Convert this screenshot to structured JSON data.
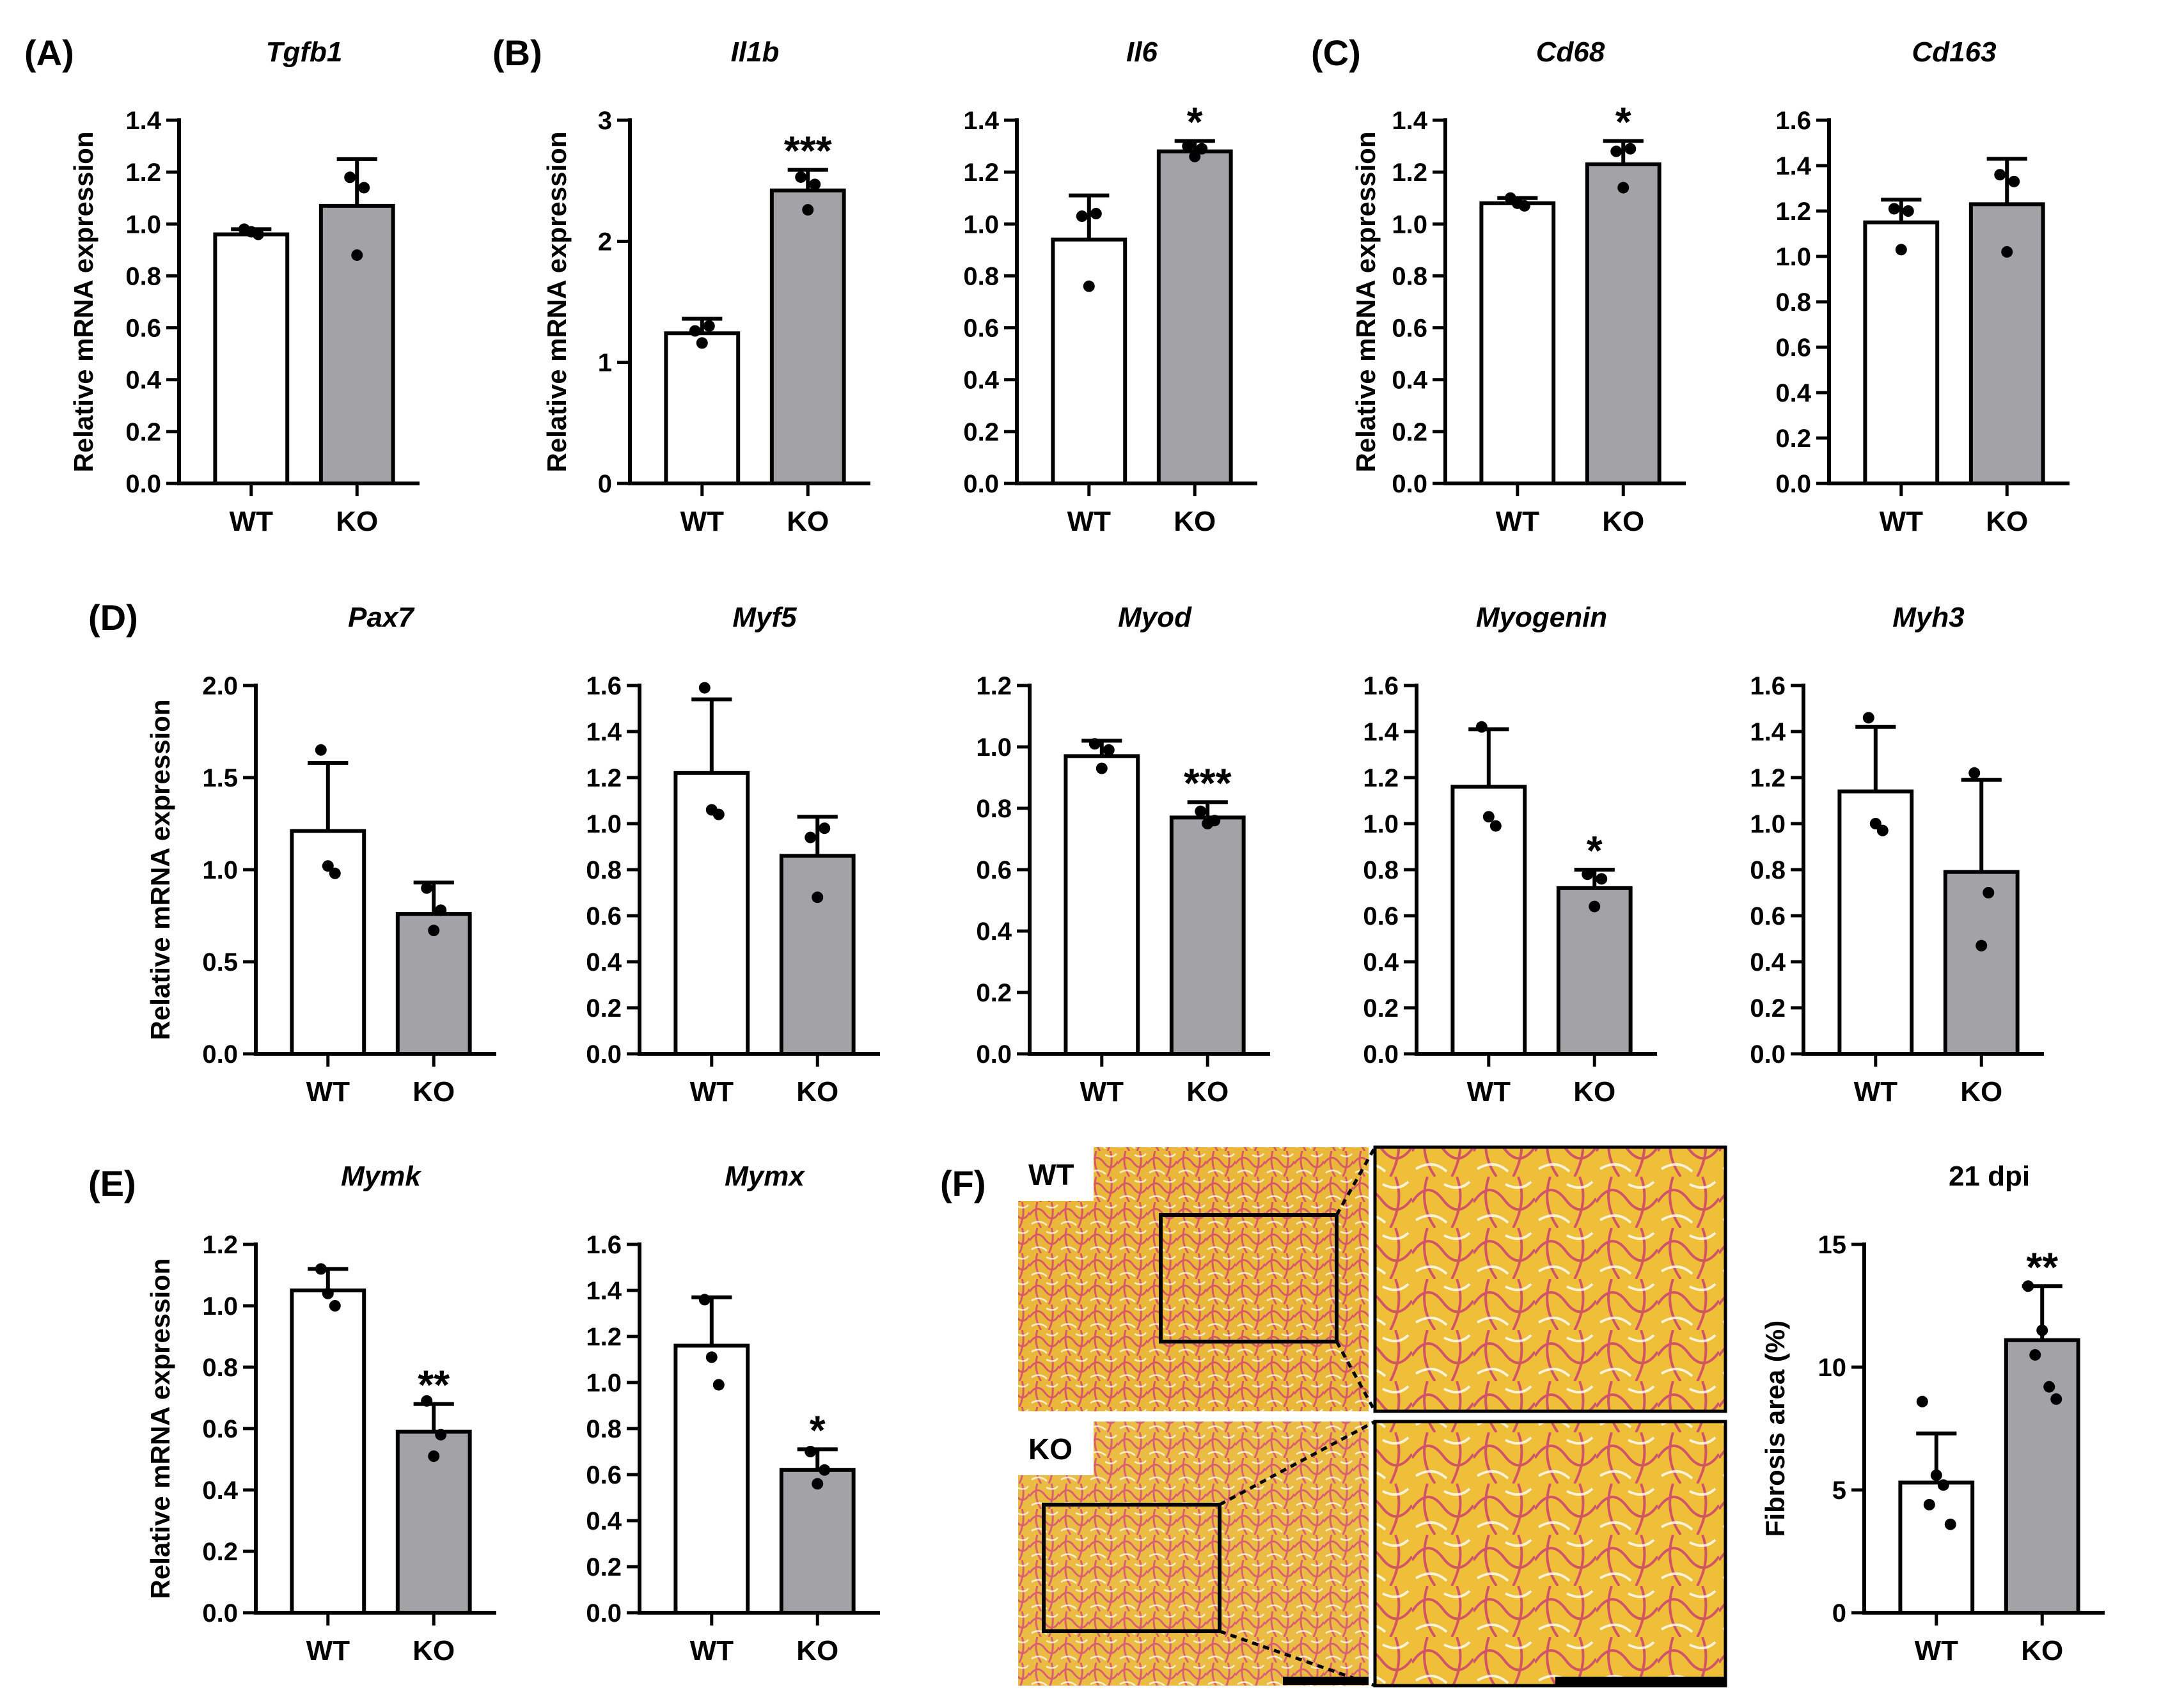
{
  "panel_labels": [
    "(A)",
    "(B)",
    "(C)",
    "(D)",
    "(E)",
    "(F)"
  ],
  "micrograph": {
    "wt_label": "WT",
    "ko_label": "KO"
  },
  "chart_data": [
    {
      "id": "tgfb1",
      "panel": "(A)",
      "type": "bar",
      "title": "Tgfb1",
      "title_italic": true,
      "ylabel": "Relative mRNA expression",
      "categories": [
        "WT",
        "KO"
      ],
      "values": [
        0.96,
        1.07
      ],
      "errors": [
        0.02,
        0.18
      ],
      "points": [
        [
          0.98,
          0.97,
          0.96
        ],
        [
          1.18,
          0.88,
          1.14
        ]
      ],
      "significance": [
        "",
        ""
      ],
      "ylim": [
        0,
        1.4
      ],
      "yticks": [
        "0.0",
        "0.2",
        "0.4",
        "0.6",
        "0.8",
        "1.0",
        "1.2",
        "1.4"
      ]
    },
    {
      "id": "il1b",
      "panel": "(B)",
      "type": "bar",
      "title": "Il1b",
      "title_italic": true,
      "ylabel": "Relative mRNA expression",
      "categories": [
        "WT",
        "KO"
      ],
      "values": [
        1.24,
        2.42
      ],
      "errors": [
        0.12,
        0.17
      ],
      "points": [
        [
          1.26,
          1.16,
          1.3
        ],
        [
          2.53,
          2.26,
          2.47
        ]
      ],
      "significance": [
        "",
        "***"
      ],
      "ylim": [
        0,
        3
      ],
      "yticks": [
        "0",
        "1",
        "2",
        "3"
      ]
    },
    {
      "id": "il6",
      "panel": "(B)",
      "type": "bar",
      "title": "Il6",
      "title_italic": true,
      "ylabel": "",
      "categories": [
        "WT",
        "KO"
      ],
      "values": [
        0.94,
        1.28
      ],
      "errors": [
        0.17,
        0.04
      ],
      "points": [
        [
          1.03,
          0.76,
          1.04
        ],
        [
          1.3,
          1.26,
          1.29
        ]
      ],
      "significance": [
        "",
        "*"
      ],
      "ylim": [
        0,
        1.4
      ],
      "yticks": [
        "0.0",
        "0.2",
        "0.4",
        "0.6",
        "0.8",
        "1.0",
        "1.2",
        "1.4"
      ]
    },
    {
      "id": "cd68",
      "panel": "(C)",
      "type": "bar",
      "title": "Cd68",
      "title_italic": true,
      "ylabel": "Relative mRNA expression",
      "categories": [
        "WT",
        "KO"
      ],
      "values": [
        1.08,
        1.23
      ],
      "errors": [
        0.02,
        0.09
      ],
      "points": [
        [
          1.1,
          1.08,
          1.07
        ],
        [
          1.28,
          1.14,
          1.29
        ]
      ],
      "significance": [
        "",
        "*"
      ],
      "ylim": [
        0,
        1.4
      ],
      "yticks": [
        "0.0",
        "0.2",
        "0.4",
        "0.6",
        "0.8",
        "1.0",
        "1.2",
        "1.4"
      ]
    },
    {
      "id": "cd163",
      "panel": "(C)",
      "type": "bar",
      "title": "Cd163",
      "title_italic": true,
      "ylabel": "",
      "categories": [
        "WT",
        "KO"
      ],
      "values": [
        1.15,
        1.23
      ],
      "errors": [
        0.1,
        0.2
      ],
      "points": [
        [
          1.21,
          1.03,
          1.2
        ],
        [
          1.36,
          1.02,
          1.33
        ]
      ],
      "significance": [
        "",
        ""
      ],
      "ylim": [
        0,
        1.6
      ],
      "yticks": [
        "0.0",
        "0.2",
        "0.4",
        "0.6",
        "0.8",
        "1.0",
        "1.2",
        "1.4",
        "1.6"
      ]
    },
    {
      "id": "pax7",
      "panel": "(D)",
      "type": "bar",
      "title": "Pax7",
      "title_italic": true,
      "ylabel": "Relative mRNA expression",
      "categories": [
        "WT",
        "KO"
      ],
      "values": [
        1.21,
        0.76
      ],
      "errors": [
        0.37,
        0.17
      ],
      "points": [
        [
          1.65,
          1.02,
          0.98
        ],
        [
          0.9,
          0.67,
          0.78
        ]
      ],
      "significance": [
        "",
        ""
      ],
      "ylim": [
        0,
        2.0
      ],
      "yticks": [
        "0.0",
        "0.5",
        "1.0",
        "1.5",
        "2.0"
      ]
    },
    {
      "id": "myf5",
      "panel": "(D)",
      "type": "bar",
      "title": "Myf5",
      "title_italic": true,
      "ylabel": "",
      "categories": [
        "WT",
        "KO"
      ],
      "values": [
        1.22,
        0.86
      ],
      "errors": [
        0.32,
        0.17
      ],
      "points": [
        [
          1.59,
          1.06,
          1.04
        ],
        [
          0.94,
          0.68,
          0.98
        ]
      ],
      "significance": [
        "",
        ""
      ],
      "ylim": [
        0,
        1.6
      ],
      "yticks": [
        "0.0",
        "0.2",
        "0.4",
        "0.6",
        "0.8",
        "1.0",
        "1.2",
        "1.4",
        "1.6"
      ]
    },
    {
      "id": "myod",
      "panel": "(D)",
      "type": "bar",
      "title": "Myod",
      "title_italic": true,
      "ylabel": "",
      "categories": [
        "WT",
        "KO"
      ],
      "values": [
        0.97,
        0.77
      ],
      "errors": [
        0.05,
        0.05
      ],
      "points": [
        [
          1.01,
          0.93,
          0.99
        ],
        [
          0.79,
          0.75,
          0.76
        ]
      ],
      "significance": [
        "",
        "***"
      ],
      "ylim": [
        0,
        1.2
      ],
      "yticks": [
        "0.0",
        "0.2",
        "0.4",
        "0.6",
        "0.8",
        "1.0",
        "1.2"
      ]
    },
    {
      "id": "myogenin",
      "panel": "(D)",
      "type": "bar",
      "title": "Myogenin",
      "title_italic": true,
      "ylabel": "",
      "categories": [
        "WT",
        "KO"
      ],
      "values": [
        1.16,
        0.72
      ],
      "errors": [
        0.25,
        0.08
      ],
      "points": [
        [
          1.42,
          1.03,
          0.99
        ],
        [
          0.78,
          0.64,
          0.76
        ]
      ],
      "significance": [
        "",
        "*"
      ],
      "ylim": [
        0,
        1.6
      ],
      "yticks": [
        "0.0",
        "0.2",
        "0.4",
        "0.6",
        "0.8",
        "1.0",
        "1.2",
        "1.4",
        "1.6"
      ]
    },
    {
      "id": "myh3",
      "panel": "(D)",
      "type": "bar",
      "title": "Myh3",
      "title_italic": true,
      "ylabel": "",
      "categories": [
        "WT",
        "KO"
      ],
      "values": [
        1.14,
        0.79
      ],
      "errors": [
        0.28,
        0.4
      ],
      "points": [
        [
          1.46,
          1.0,
          0.97
        ],
        [
          1.22,
          0.47,
          0.7
        ]
      ],
      "significance": [
        "",
        ""
      ],
      "ylim": [
        0,
        1.6
      ],
      "yticks": [
        "0.0",
        "0.2",
        "0.4",
        "0.6",
        "0.8",
        "1.0",
        "1.2",
        "1.4",
        "1.6"
      ]
    },
    {
      "id": "mymk",
      "panel": "(E)",
      "type": "bar",
      "title": "Mymk",
      "title_italic": true,
      "ylabel": "Relative mRNA expression",
      "categories": [
        "WT",
        "KO"
      ],
      "values": [
        1.05,
        0.59
      ],
      "errors": [
        0.07,
        0.09
      ],
      "points": [
        [
          1.12,
          1.04,
          1.0
        ],
        [
          0.69,
          0.51,
          0.58
        ]
      ],
      "significance": [
        "",
        "**"
      ],
      "ylim": [
        0,
        1.2
      ],
      "yticks": [
        "0.0",
        "0.2",
        "0.4",
        "0.6",
        "0.8",
        "1.0",
        "1.2"
      ]
    },
    {
      "id": "mymx",
      "panel": "(E)",
      "type": "bar",
      "title": "Mymx",
      "title_italic": true,
      "ylabel": "",
      "categories": [
        "WT",
        "KO"
      ],
      "values": [
        1.16,
        0.62
      ],
      "errors": [
        0.21,
        0.09
      ],
      "points": [
        [
          1.36,
          1.11,
          0.99
        ],
        [
          0.7,
          0.56,
          0.62
        ]
      ],
      "significance": [
        "",
        "*"
      ],
      "ylim": [
        0,
        1.6
      ],
      "yticks": [
        "0.0",
        "0.2",
        "0.4",
        "0.6",
        "0.8",
        "1.0",
        "1.2",
        "1.4",
        "1.6"
      ]
    },
    {
      "id": "fibrosis",
      "panel": "(F)",
      "type": "bar",
      "title": "21 dpi",
      "title_italic": false,
      "ylabel": "Fibrosis area (%)",
      "categories": [
        "WT",
        "KO"
      ],
      "values": [
        5.3,
        11.1
      ],
      "errors": [
        2.0,
        2.2
      ],
      "points": [
        [
          8.6,
          4.4,
          5.6,
          5.2,
          3.6
        ],
        [
          13.3,
          10.5,
          11.5,
          9.2,
          8.7
        ]
      ],
      "significance": [
        "",
        "**"
      ],
      "ylim": [
        0,
        15
      ],
      "yticks": [
        "0",
        "5",
        "10",
        "15"
      ]
    }
  ]
}
